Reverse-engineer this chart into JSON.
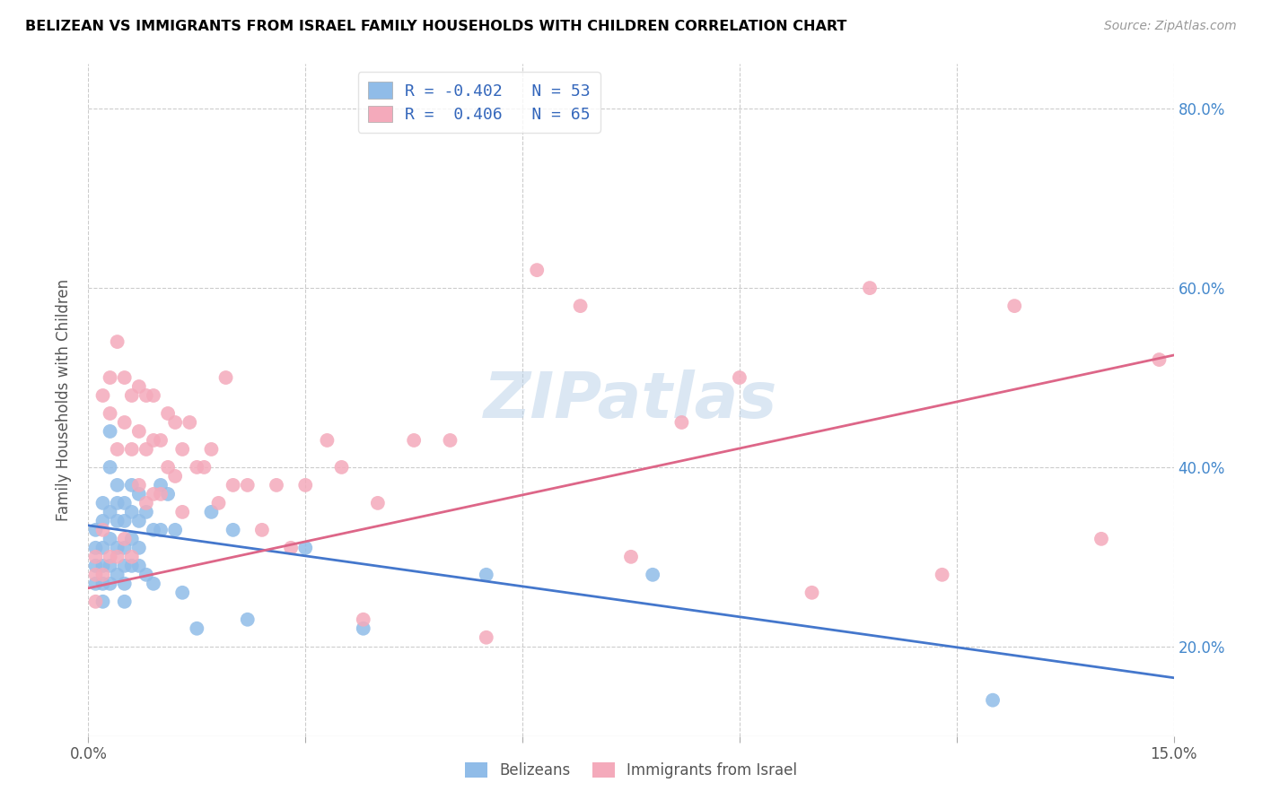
{
  "title": "BELIZEAN VS IMMIGRANTS FROM ISRAEL FAMILY HOUSEHOLDS WITH CHILDREN CORRELATION CHART",
  "source": "Source: ZipAtlas.com",
  "ylabel": "Family Households with Children",
  "xlim": [
    0.0,
    0.15
  ],
  "ylim": [
    0.1,
    0.85
  ],
  "color_blue": "#90bce8",
  "color_pink": "#f4aabb",
  "line_color_blue": "#4477cc",
  "line_color_pink": "#dd6688",
  "watermark": "ZIPatlas",
  "legend_label1": "R = -0.402   N = 53",
  "legend_label2": "R =  0.406   N = 65",
  "legend_bottom1": "Belizeans",
  "legend_bottom2": "Immigrants from Israel",
  "blue_line_x": [
    0.0,
    0.15
  ],
  "blue_line_y": [
    0.335,
    0.165
  ],
  "pink_line_x": [
    0.0,
    0.15
  ],
  "pink_line_y": [
    0.265,
    0.525
  ],
  "blue_points_x": [
    0.001,
    0.001,
    0.001,
    0.001,
    0.002,
    0.002,
    0.002,
    0.002,
    0.002,
    0.002,
    0.003,
    0.003,
    0.003,
    0.003,
    0.003,
    0.003,
    0.004,
    0.004,
    0.004,
    0.004,
    0.004,
    0.005,
    0.005,
    0.005,
    0.005,
    0.005,
    0.005,
    0.006,
    0.006,
    0.006,
    0.006,
    0.007,
    0.007,
    0.007,
    0.007,
    0.008,
    0.008,
    0.009,
    0.009,
    0.01,
    0.01,
    0.011,
    0.012,
    0.013,
    0.015,
    0.017,
    0.02,
    0.022,
    0.03,
    0.038,
    0.055,
    0.078,
    0.125
  ],
  "blue_points_y": [
    0.33,
    0.31,
    0.29,
    0.27,
    0.36,
    0.34,
    0.31,
    0.29,
    0.27,
    0.25,
    0.44,
    0.4,
    0.35,
    0.32,
    0.29,
    0.27,
    0.38,
    0.36,
    0.34,
    0.31,
    0.28,
    0.36,
    0.34,
    0.31,
    0.29,
    0.27,
    0.25,
    0.38,
    0.35,
    0.32,
    0.29,
    0.37,
    0.34,
    0.31,
    0.29,
    0.35,
    0.28,
    0.33,
    0.27,
    0.38,
    0.33,
    0.37,
    0.33,
    0.26,
    0.22,
    0.35,
    0.33,
    0.23,
    0.31,
    0.22,
    0.28,
    0.28,
    0.14
  ],
  "pink_points_x": [
    0.001,
    0.001,
    0.001,
    0.002,
    0.002,
    0.002,
    0.003,
    0.003,
    0.003,
    0.004,
    0.004,
    0.004,
    0.005,
    0.005,
    0.005,
    0.006,
    0.006,
    0.006,
    0.007,
    0.007,
    0.007,
    0.008,
    0.008,
    0.008,
    0.009,
    0.009,
    0.009,
    0.01,
    0.01,
    0.011,
    0.011,
    0.012,
    0.012,
    0.013,
    0.013,
    0.014,
    0.015,
    0.016,
    0.017,
    0.018,
    0.019,
    0.02,
    0.022,
    0.024,
    0.026,
    0.028,
    0.03,
    0.033,
    0.035,
    0.038,
    0.04,
    0.045,
    0.05,
    0.055,
    0.062,
    0.068,
    0.075,
    0.082,
    0.09,
    0.1,
    0.108,
    0.118,
    0.128,
    0.14,
    0.148
  ],
  "pink_points_y": [
    0.3,
    0.28,
    0.25,
    0.48,
    0.33,
    0.28,
    0.5,
    0.46,
    0.3,
    0.54,
    0.42,
    0.3,
    0.5,
    0.45,
    0.32,
    0.48,
    0.42,
    0.3,
    0.49,
    0.44,
    0.38,
    0.48,
    0.42,
    0.36,
    0.48,
    0.43,
    0.37,
    0.43,
    0.37,
    0.46,
    0.4,
    0.45,
    0.39,
    0.42,
    0.35,
    0.45,
    0.4,
    0.4,
    0.42,
    0.36,
    0.5,
    0.38,
    0.38,
    0.33,
    0.38,
    0.31,
    0.38,
    0.43,
    0.4,
    0.23,
    0.36,
    0.43,
    0.43,
    0.21,
    0.62,
    0.58,
    0.3,
    0.45,
    0.5,
    0.26,
    0.6,
    0.28,
    0.58,
    0.32,
    0.52
  ]
}
